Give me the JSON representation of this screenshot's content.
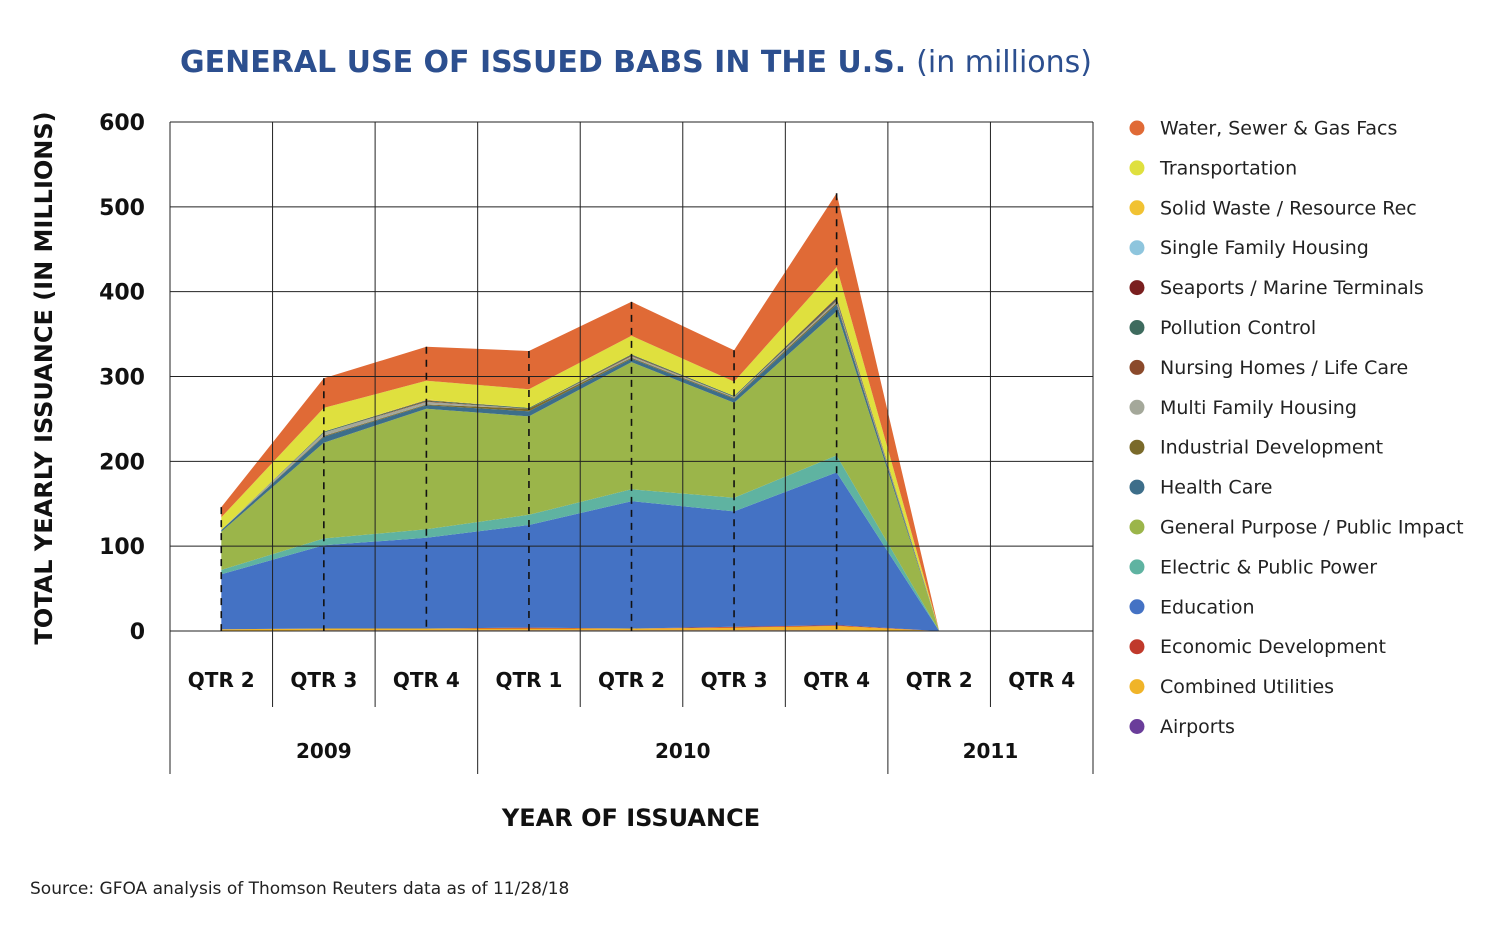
{
  "chart_data": {
    "type": "area",
    "title": "GENERAL USE OF ISSUED BABS IN THE U.S.",
    "title_unit": "(in millions)",
    "ylabel": "TOTAL YEARLY ISSUANCE (IN MILLIONS)",
    "xlabel": "YEAR OF ISSUANCE",
    "ylim": [
      0,
      600
    ],
    "yticks": [
      "0",
      "100",
      "200",
      "300",
      "400",
      "500",
      "600"
    ],
    "grid": true,
    "legend_position": "right",
    "stacked": true,
    "categories": [
      "QTR 2",
      "QTR 3",
      "QTR 4",
      "QTR 1",
      "QTR 2",
      "QTR 3",
      "QTR 4",
      "QTR 2",
      "QTR 4"
    ],
    "years": [
      {
        "label": "2009",
        "start": 0,
        "end": 2
      },
      {
        "label": "2010",
        "start": 3,
        "end": 6
      },
      {
        "label": "2011",
        "start": 7,
        "end": 8
      }
    ],
    "series": [
      {
        "name": "Airports",
        "color": "#6a3d9a",
        "values": [
          0,
          1,
          1,
          1,
          1,
          1,
          1,
          0,
          null
        ]
      },
      {
        "name": "Combined Utilities",
        "color": "#f0b429",
        "values": [
          2,
          2,
          2,
          2,
          2,
          3,
          5,
          0,
          null
        ]
      },
      {
        "name": "Economic Development",
        "color": "#c0392b",
        "values": [
          0,
          0,
          0,
          1,
          0,
          1,
          1,
          0,
          null
        ]
      },
      {
        "name": "Education",
        "color": "#4472c4",
        "values": [
          65,
          98,
          107,
          121,
          150,
          136,
          180,
          0,
          null
        ]
      },
      {
        "name": "Electric & Public Power",
        "color": "#5fb3a1",
        "values": [
          5,
          8,
          10,
          12,
          14,
          16,
          20,
          0,
          null
        ]
      },
      {
        "name": "General Purpose / Public Impact",
        "color": "#9bb54a",
        "values": [
          45,
          113,
          142,
          116,
          150,
          112,
          170,
          0,
          null
        ]
      },
      {
        "name": "Health Care",
        "color": "#3d6e8a",
        "values": [
          2,
          7,
          4,
          6,
          4,
          5,
          8,
          0,
          null
        ]
      },
      {
        "name": "Industrial Development",
        "color": "#7a6a2a",
        "values": [
          0,
          1,
          1,
          3,
          1,
          1,
          2,
          0,
          null
        ]
      },
      {
        "name": "Multi Family Housing",
        "color": "#a4a89a",
        "values": [
          0,
          4,
          3,
          0,
          2,
          1,
          2,
          0,
          null
        ]
      },
      {
        "name": "Nursing Homes / Life Care",
        "color": "#8b4a2b",
        "values": [
          0,
          0,
          1,
          0,
          1,
          0,
          1,
          0,
          null
        ]
      },
      {
        "name": "Pollution Control",
        "color": "#3e6b5e",
        "values": [
          0,
          1,
          1,
          1,
          1,
          1,
          2,
          0,
          null
        ]
      },
      {
        "name": "Seaports / Marine Terminals",
        "color": "#7a1f1f",
        "values": [
          0,
          0,
          0,
          0,
          0,
          0,
          1,
          0,
          null
        ]
      },
      {
        "name": "Single Family Housing",
        "color": "#8ec5dd",
        "values": [
          0,
          0,
          0,
          0,
          0,
          0,
          0,
          0,
          null
        ]
      },
      {
        "name": "Solid Waste / Resource Rec",
        "color": "#f1c232",
        "values": [
          0,
          0,
          1,
          0,
          0,
          0,
          0,
          0,
          null
        ]
      },
      {
        "name": "Transportation",
        "color": "#dfe03e",
        "values": [
          15,
          28,
          22,
          22,
          22,
          17,
          36,
          0,
          null
        ]
      },
      {
        "name": "Water, Sewer & Gas Facs",
        "color": "#e06a36",
        "values": [
          12,
          35,
          40,
          45,
          40,
          37,
          87,
          0,
          null
        ]
      }
    ]
  },
  "source": "Source: GFOA analysis of Thomson Reuters data as of 11/28/18"
}
